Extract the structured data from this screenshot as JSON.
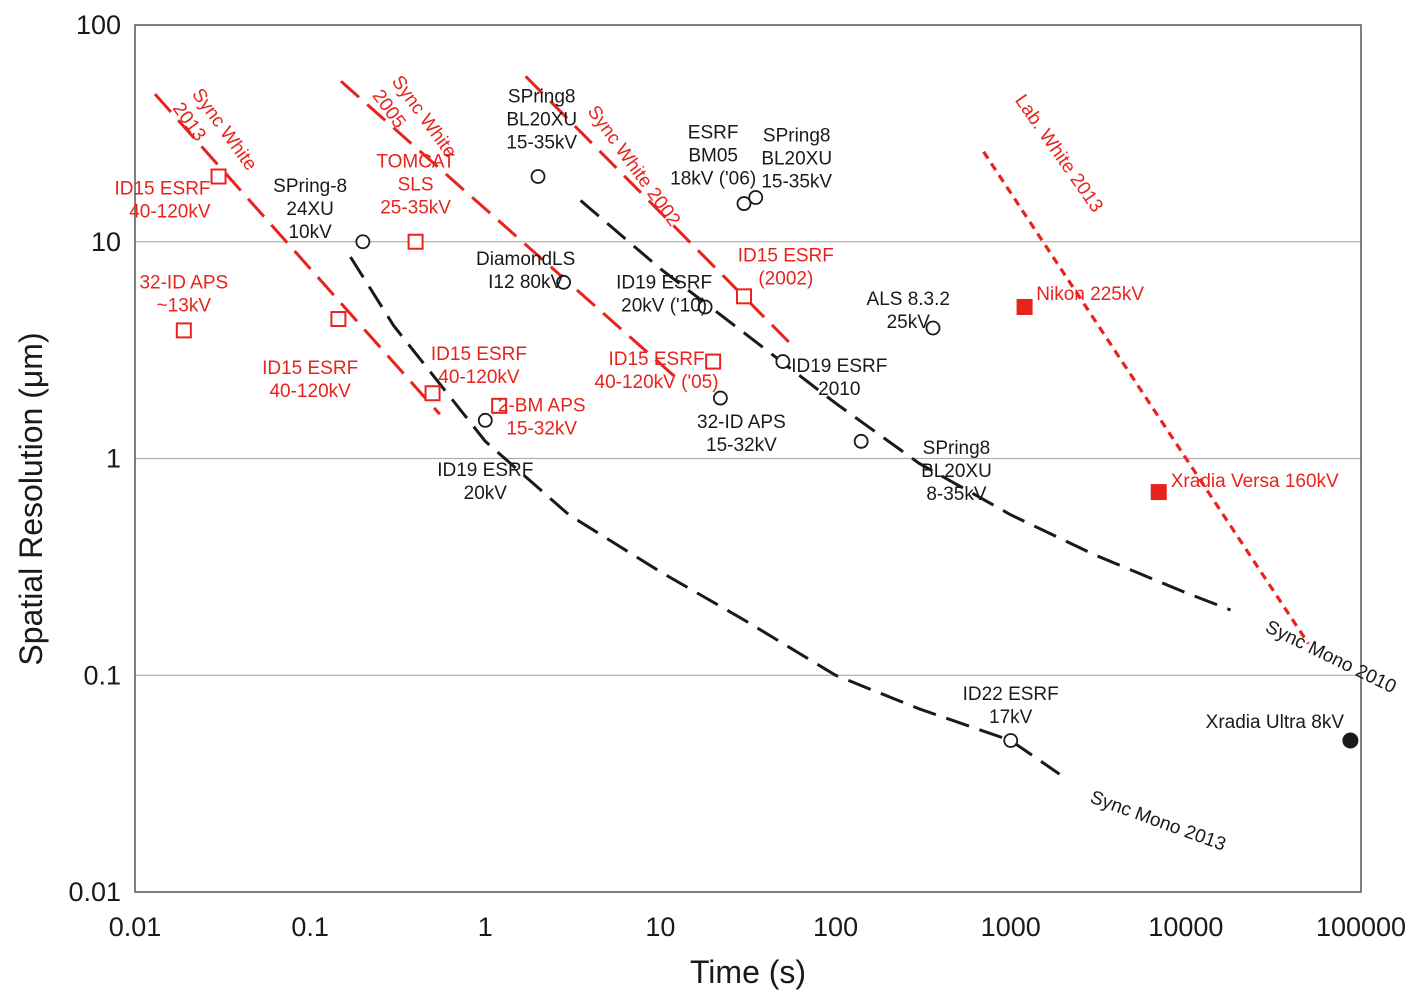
{
  "chart_data": {
    "type": "scatter",
    "xlabel": "Time (s)",
    "ylabel": "Spatial Resolution (μm)",
    "xscale": "log",
    "yscale": "log",
    "xlim": [
      0.01,
      100000
    ],
    "ylim": [
      0.01,
      100
    ],
    "grid": "horizontal",
    "x_ticks": [
      {
        "value": 0.01,
        "label": "0.01"
      },
      {
        "value": 0.1,
        "label": "0.1"
      },
      {
        "value": 1,
        "label": "1"
      },
      {
        "value": 10,
        "label": "10"
      },
      {
        "value": 100,
        "label": "100"
      },
      {
        "value": 1000,
        "label": "1000"
      },
      {
        "value": 10000,
        "label": "10000"
      },
      {
        "value": 100000,
        "label": "100000"
      }
    ],
    "y_ticks": [
      {
        "value": 0.01,
        "label": "0.01"
      },
      {
        "value": 0.1,
        "label": "0.1"
      },
      {
        "value": 1,
        "label": "1"
      },
      {
        "value": 10,
        "label": "10"
      },
      {
        "value": 100,
        "label": "100"
      }
    ],
    "colors": {
      "synchrotron_white": "#e8231c",
      "monochromatic": "#1a1a1a",
      "grid": "#b0b0b0"
    },
    "series": [
      {
        "name": "Sync White 2013",
        "style": "red-dashed",
        "points": [
          [
            0.013,
            48
          ],
          [
            0.55,
            1.6
          ]
        ]
      },
      {
        "name": "Sync White 2005",
        "style": "red-dashed",
        "points": [
          [
            0.15,
            55
          ],
          [
            12,
            2.4
          ]
        ]
      },
      {
        "name": "Sync White 2002",
        "style": "red-dashed",
        "points": [
          [
            1.7,
            58
          ],
          [
            55,
            3.4
          ]
        ]
      },
      {
        "name": "Lab. White 2013",
        "style": "red-dotted",
        "points": [
          [
            700,
            26
          ],
          [
            50000,
            0.14
          ]
        ]
      },
      {
        "name": "",
        "style": "black-dashed",
        "points": [
          [
            3.5,
            15.5
          ],
          [
            10,
            7.5
          ],
          [
            30,
            3.8
          ],
          [
            100,
            1.8
          ],
          [
            300,
            0.95
          ],
          [
            1000,
            0.55
          ],
          [
            3000,
            0.36
          ],
          [
            10000,
            0.24
          ],
          [
            18000,
            0.2
          ]
        ]
      },
      {
        "name": "Sync Mono 2010",
        "style": "black-dashed",
        "points": [
          [
            0.17,
            8.5
          ],
          [
            0.3,
            4.1
          ],
          [
            1,
            1.2
          ],
          [
            3,
            0.55
          ],
          [
            10,
            0.3
          ],
          [
            30,
            0.18
          ],
          [
            100,
            0.1
          ],
          [
            300,
            0.07
          ],
          [
            1000,
            0.05
          ],
          [
            1900,
            0.035
          ]
        ]
      }
    ],
    "curve_labels": [
      {
        "text": "Sync White 2013",
        "parts": [
          "Sync White",
          "2013"
        ],
        "color": "red",
        "x": 0.021,
        "y": 48,
        "angle": 54
      },
      {
        "text": "Sync White 2005",
        "parts": [
          "Sync White",
          "2005"
        ],
        "color": "red",
        "x": 0.29,
        "y": 55,
        "angle": 54
      },
      {
        "text": "Sync White 2002",
        "color": "red",
        "x": 3.8,
        "y": 40,
        "angle": 54
      },
      {
        "text": "Lab. White 2013",
        "color": "red",
        "x": 1050,
        "y": 45,
        "angle": 55
      },
      {
        "text": "Sync Mono 2010",
        "color": "black",
        "x": 28000,
        "y": 0.16,
        "angle": 26
      },
      {
        "text": "Sync Mono 2013",
        "color": "black",
        "x": 2800,
        "y": 0.026,
        "angle": 20
      }
    ],
    "points": [
      {
        "label": "ID15 ESRF\n40-120kV",
        "x": 0.03,
        "y": 20,
        "marker": "open-square",
        "color": "red",
        "lx": 0.027,
        "ly": 16.5,
        "anchor": "end"
      },
      {
        "label": "32-ID APS\n~13kV",
        "x": 0.019,
        "y": 3.9,
        "marker": "open-square",
        "color": "red",
        "lx": 0.019,
        "ly": 6.1,
        "anchor": "middle"
      },
      {
        "label": "ID15 ESRF\n40-120kV",
        "x": 0.145,
        "y": 4.4,
        "marker": "open-square",
        "color": "red",
        "lx": 0.1,
        "ly": 2.45,
        "anchor": "middle"
      },
      {
        "label": "TOMCAT\nSLS\n25-35kV",
        "x": 0.4,
        "y": 10,
        "marker": "open-square",
        "color": "red",
        "lx": 0.4,
        "ly": 22,
        "anchor": "middle"
      },
      {
        "label": "ID15 ESRF\n40-120kV",
        "x": 0.5,
        "y": 2,
        "marker": "open-square",
        "color": "red",
        "lx": 0.92,
        "ly": 2.85,
        "anchor": "middle"
      },
      {
        "label": "2-BM APS\n15-32kV",
        "x": 1.2,
        "y": 1.75,
        "marker": "open-square",
        "color": "red",
        "lx": 2.1,
        "ly": 1.65,
        "anchor": "middle"
      },
      {
        "label": "ID15 ESRF\n40-120kV ('05)",
        "x": 20,
        "y": 2.8,
        "marker": "open-square",
        "color": "red",
        "lx": 9.5,
        "ly": 2.7,
        "anchor": "middle"
      },
      {
        "label": "ID15 ESRF\n(2002)",
        "x": 30,
        "y": 5.6,
        "marker": "open-square",
        "color": "red",
        "lx": 52,
        "ly": 8.1,
        "anchor": "middle"
      },
      {
        "label": "SPring-8\n24XU\n10kV",
        "x": 0.2,
        "y": 10,
        "marker": "open-circle",
        "color": "black",
        "lx": 0.1,
        "ly": 17,
        "anchor": "middle"
      },
      {
        "label": "SPring8\nBL20XU\n15-35kV",
        "x": 2,
        "y": 20,
        "marker": "open-circle",
        "color": "black",
        "lx": 2.1,
        "ly": 44,
        "anchor": "middle"
      },
      {
        "label": "DiamondLS\nI12 80kV",
        "x": 2.8,
        "y": 6.5,
        "marker": "open-circle",
        "color": "black",
        "lx": 1.7,
        "ly": 7.8,
        "anchor": "middle"
      },
      {
        "label": "ID19 ESRF\n20kV ('10)",
        "x": 18,
        "y": 5,
        "marker": "open-circle",
        "color": "black",
        "lx": 10.5,
        "ly": 6.1,
        "anchor": "middle"
      },
      {
        "label": "ESRF\nBM05\n18kV ('06)",
        "x": 30,
        "y": 15,
        "marker": "open-circle",
        "color": "black",
        "lx": 20,
        "ly": 30,
        "anchor": "middle"
      },
      {
        "label": "SPring8\nBL20XU\n15-35kV",
        "x": 35,
        "y": 16,
        "marker": "open-circle",
        "color": "black",
        "lx": 60,
        "ly": 29,
        "anchor": "middle"
      },
      {
        "label": "ID19 ESRF\n2010",
        "x": 50,
        "y": 2.8,
        "marker": "open-circle",
        "color": "black",
        "lx": 105,
        "ly": 2.5,
        "anchor": "middle"
      },
      {
        "label": "32-ID APS\n15-32kV",
        "x": 22,
        "y": 1.9,
        "marker": "open-circle",
        "color": "black",
        "lx": 29,
        "ly": 1.38,
        "anchor": "middle"
      },
      {
        "label": "ID19 ESRF\n20kV",
        "x": 1,
        "y": 1.5,
        "marker": "open-circle",
        "color": "black",
        "lx": 1,
        "ly": 0.83,
        "anchor": "middle"
      },
      {
        "label": "ALS 8.3.2\n25kV",
        "x": 360,
        "y": 4,
        "marker": "open-circle",
        "color": "black",
        "lx": 260,
        "ly": 5.1,
        "anchor": "middle"
      },
      {
        "label": "SPring8\nBL20XU\n8-35kV",
        "x": 140,
        "y": 1.2,
        "marker": "open-circle",
        "color": "black",
        "lx": 490,
        "ly": 1.05,
        "anchor": "middle"
      },
      {
        "label": "ID22 ESRF\n17kV",
        "x": 1000,
        "y": 0.05,
        "marker": "open-circle",
        "color": "black",
        "lx": 1000,
        "ly": 0.077,
        "anchor": "middle"
      },
      {
        "label": "Nikon 225kV",
        "x": 1200,
        "y": 5,
        "marker": "filled-square",
        "color": "red",
        "lx": 1400,
        "ly": 5.4,
        "anchor": "start"
      },
      {
        "label": "Xradia Versa 160kV",
        "x": 7000,
        "y": 0.7,
        "marker": "filled-square",
        "color": "red",
        "lx": 8200,
        "ly": 0.74,
        "anchor": "start"
      },
      {
        "label": "Xradia Ultra 8kV",
        "x": 87000,
        "y": 0.05,
        "marker": "filled-circle",
        "color": "black",
        "lx": 80000,
        "ly": 0.057,
        "anchor": "end"
      }
    ]
  }
}
